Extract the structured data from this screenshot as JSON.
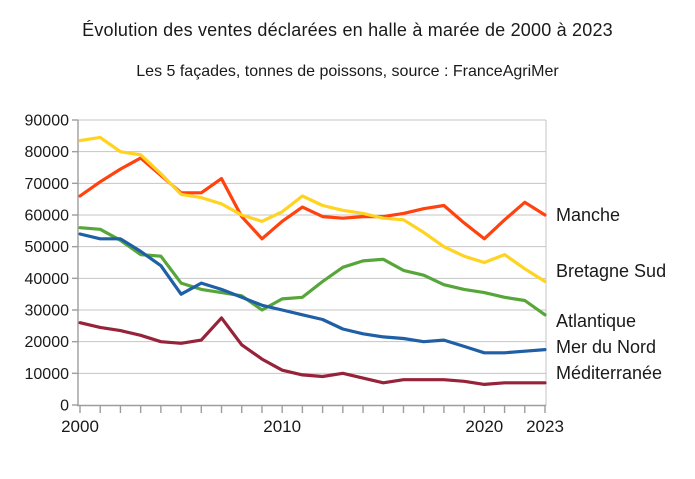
{
  "chart_data": {
    "type": "line",
    "title": "Évolution des ventes déclarées en halle à marée de 2000 à 2023",
    "subtitle": "Les 5 façades, tonnes de poissons, source : FranceAgriMer",
    "unit": "tonnes de poissons",
    "source": "FranceAgriMer",
    "x": [
      2000,
      2001,
      2002,
      2003,
      2004,
      2005,
      2006,
      2007,
      2008,
      2009,
      2010,
      2011,
      2012,
      2013,
      2014,
      2015,
      2016,
      2017,
      2018,
      2019,
      2020,
      2021,
      2022,
      2023
    ],
    "x_tick_labels": [
      "2000",
      "2010",
      "2020",
      "2023"
    ],
    "x_tick_values": [
      2000,
      2010,
      2020,
      2023
    ],
    "ylim": [
      0,
      90000
    ],
    "y_tick_step": 10000,
    "y_tick_labels": [
      "0",
      "10000",
      "20000",
      "30000",
      "40000",
      "50000",
      "60000",
      "70000",
      "80000",
      "90000"
    ],
    "grid": true,
    "legend_position": "right",
    "grid_color": "#c4c4c4",
    "axis_color": "#9d9d9d",
    "text_color": "#1a1a1a",
    "series": [
      {
        "name": "Manche",
        "color": "#FF420E",
        "values": [
          66000,
          70500,
          74500,
          78000,
          72500,
          67000,
          67000,
          71500,
          59500,
          52500,
          58000,
          62500,
          59500,
          59000,
          59500,
          59500,
          60500,
          62000,
          63000,
          57500,
          52500,
          58500,
          64000,
          60000
        ]
      },
      {
        "name": "Bretagne Sud",
        "color": "#FFD320",
        "values": [
          83500,
          84500,
          80000,
          79000,
          73000,
          66500,
          65500,
          63500,
          60000,
          58000,
          61000,
          66000,
          63000,
          61500,
          60500,
          59000,
          58500,
          54500,
          50000,
          47000,
          45000,
          47500,
          43000,
          39000
        ]
      },
      {
        "name": "Atlantique",
        "color": "#57A639",
        "values": [
          56000,
          55500,
          52000,
          47500,
          47000,
          38500,
          36500,
          35500,
          34500,
          30000,
          33500,
          34000,
          39000,
          43500,
          45500,
          46000,
          42500,
          41000,
          38000,
          36500,
          35500,
          34000,
          33000,
          28500
        ]
      },
      {
        "name": "Mer du Nord",
        "color": "#1F5FA6",
        "values": [
          54000,
          52500,
          52500,
          48500,
          44000,
          35000,
          38500,
          36500,
          34000,
          31500,
          30000,
          28500,
          27000,
          24000,
          22500,
          21500,
          21000,
          20000,
          20500,
          18500,
          16500,
          16500,
          17000,
          17500
        ]
      },
      {
        "name": "Méditerranée",
        "color": "#962339",
        "values": [
          26000,
          24500,
          23500,
          22000,
          20000,
          19500,
          20500,
          27500,
          19000,
          14500,
          11000,
          9500,
          9000,
          10000,
          8500,
          7000,
          8000,
          8000,
          8000,
          7500,
          6500,
          7000,
          7000,
          7000
        ]
      }
    ]
  }
}
